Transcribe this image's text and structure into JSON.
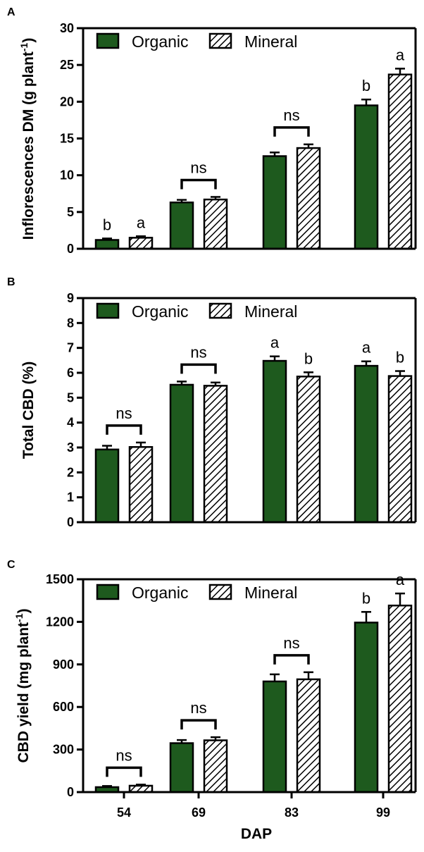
{
  "legend": {
    "organic": "Organic",
    "mineral": "Mineral"
  },
  "colors": {
    "organic": "#1e5a1e",
    "mineral_hatch": "#000000",
    "axis": "#000000"
  },
  "chart_data": [
    {
      "type": "bar",
      "panel": "A",
      "ylabel_main": "Inflorescences DM (g plant",
      "ylabel_sup": "-1",
      "ylabel_end": ")",
      "ylim": [
        0,
        30
      ],
      "yticks": [
        "0",
        "5",
        "10",
        "15",
        "20",
        "25",
        "30"
      ],
      "legend_position": "top-left",
      "categories": [
        "54",
        "69",
        "83",
        "99"
      ],
      "series": [
        {
          "name": "Organic",
          "values": [
            1.2,
            6.3,
            12.6,
            19.5
          ],
          "errors": [
            0.2,
            0.35,
            0.5,
            0.8
          ]
        },
        {
          "name": "Mineral",
          "values": [
            1.5,
            6.7,
            13.7,
            23.7
          ],
          "errors": [
            0.2,
            0.35,
            0.5,
            0.8
          ]
        }
      ],
      "annotations": [
        {
          "category": 0,
          "type": "letters",
          "labels": [
            "b",
            "a"
          ]
        },
        {
          "category": 1,
          "type": "bracket",
          "label": "ns"
        },
        {
          "category": 2,
          "type": "bracket",
          "label": "ns"
        },
        {
          "category": 3,
          "type": "letters",
          "labels": [
            "b",
            "a"
          ]
        }
      ]
    },
    {
      "type": "bar",
      "panel": "B",
      "ylabel_main": "Total CBD (%)",
      "ylabel_sup": "",
      "ylabel_end": "",
      "ylim": [
        0,
        9
      ],
      "yticks": [
        "0",
        "1",
        "2",
        "3",
        "4",
        "5",
        "6",
        "7",
        "8",
        "9"
      ],
      "legend_position": "top-left",
      "categories": [
        "54",
        "69",
        "83",
        "99"
      ],
      "series": [
        {
          "name": "Organic",
          "values": [
            2.92,
            5.52,
            6.48,
            6.28
          ],
          "errors": [
            0.15,
            0.13,
            0.18,
            0.18
          ]
        },
        {
          "name": "Mineral",
          "values": [
            3.02,
            5.48,
            5.85,
            5.87
          ],
          "errors": [
            0.18,
            0.13,
            0.17,
            0.2
          ]
        }
      ],
      "annotations": [
        {
          "category": 0,
          "type": "bracket",
          "label": "ns"
        },
        {
          "category": 1,
          "type": "bracket",
          "label": "ns"
        },
        {
          "category": 2,
          "type": "letters",
          "labels": [
            "a",
            "b"
          ]
        },
        {
          "category": 3,
          "type": "letters",
          "labels": [
            "a",
            "b"
          ]
        }
      ]
    },
    {
      "type": "bar",
      "panel": "C",
      "ylabel_main": "CBD yield (mg plant",
      "ylabel_sup": "-1",
      "ylabel_end": ")",
      "ylim": [
        0,
        1500
      ],
      "yticks": [
        "0",
        "300",
        "600",
        "900",
        "1200",
        "1500"
      ],
      "legend_position": "top-left",
      "xlabel": "DAP",
      "categories": [
        "54",
        "69",
        "83",
        "99"
      ],
      "series": [
        {
          "name": "Organic",
          "values": [
            35,
            345,
            780,
            1195
          ],
          "errors": [
            8,
            22,
            50,
            75
          ]
        },
        {
          "name": "Mineral",
          "values": [
            45,
            365,
            795,
            1315
          ],
          "errors": [
            8,
            22,
            50,
            85
          ]
        }
      ],
      "annotations": [
        {
          "category": 0,
          "type": "bracket",
          "label": "ns"
        },
        {
          "category": 1,
          "type": "bracket",
          "label": "ns"
        },
        {
          "category": 2,
          "type": "bracket",
          "label": "ns"
        },
        {
          "category": 3,
          "type": "letters",
          "labels": [
            "b",
            "a"
          ]
        }
      ]
    }
  ]
}
